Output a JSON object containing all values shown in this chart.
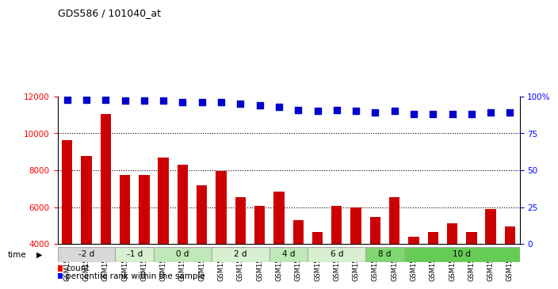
{
  "title": "GDS586 / 101040_at",
  "samples": [
    "GSM15502",
    "GSM15503",
    "GSM15504",
    "GSM15505",
    "GSM15506",
    "GSM15507",
    "GSM15508",
    "GSM15509",
    "GSM15510",
    "GSM15511",
    "GSM15517",
    "GSM15519",
    "GSM15523",
    "GSM15524",
    "GSM15525",
    "GSM15532",
    "GSM15534",
    "GSM15537",
    "GSM15539",
    "GSM15541",
    "GSM15579",
    "GSM15581",
    "GSM15583",
    "GSM15585"
  ],
  "counts": [
    9650,
    8750,
    11050,
    7750,
    7750,
    8700,
    8300,
    7200,
    7950,
    6550,
    6050,
    6850,
    5300,
    4650,
    6050,
    6000,
    5450,
    6550,
    4400,
    4650,
    5100,
    4650,
    5900,
    4950
  ],
  "percentiles": [
    98,
    98,
    98,
    97,
    97,
    97,
    96,
    96,
    96,
    95,
    94,
    93,
    91,
    90,
    91,
    90,
    89,
    90,
    88,
    88,
    88,
    88,
    89,
    89
  ],
  "time_groups": [
    {
      "label": "-2 d",
      "count": 3,
      "color": "#d8d8d8"
    },
    {
      "label": "-1 d",
      "count": 2,
      "color": "#d8f0d0"
    },
    {
      "label": "0 d",
      "count": 3,
      "color": "#c0e8b8"
    },
    {
      "label": "2 d",
      "count": 3,
      "color": "#d8f0d0"
    },
    {
      "label": "4 d",
      "count": 2,
      "color": "#c0e8b8"
    },
    {
      "label": "6 d",
      "count": 3,
      "color": "#d8f0d0"
    },
    {
      "label": "8 d",
      "count": 2,
      "color": "#80d870"
    },
    {
      "label": "10 d",
      "count": 6,
      "color": "#66cc55"
    }
  ],
  "bar_color": "#cc0000",
  "dot_color": "#0000cc",
  "ylim_left": [
    4000,
    12000
  ],
  "ylim_right": [
    0,
    100
  ],
  "yticks_left": [
    4000,
    6000,
    8000,
    10000,
    12000
  ],
  "yticks_right": [
    0,
    25,
    50,
    75,
    100
  ],
  "yticklabels_right": [
    "0",
    "25",
    "50",
    "75",
    "100%"
  ],
  "bg_color": "#ffffff",
  "grid_color": "#000000"
}
